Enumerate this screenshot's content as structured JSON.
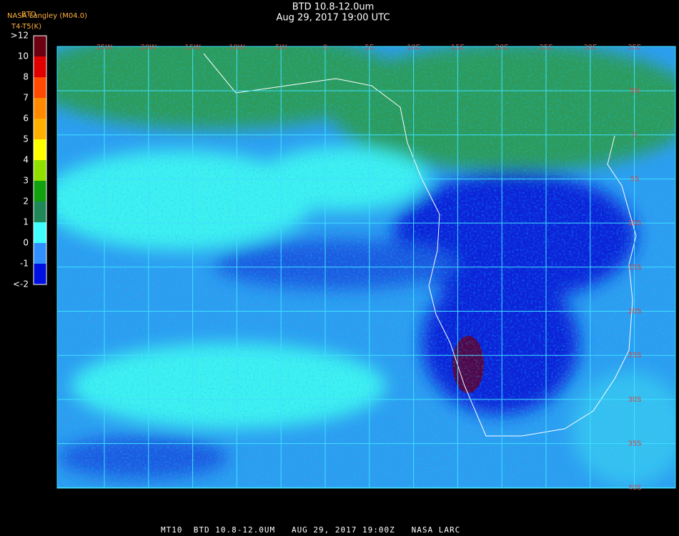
{
  "header": {
    "title": "BTD 10.8-12.0um",
    "subtitle": "Aug 29, 2017 19:00 UTC",
    "source": "NASA Langley (M04.0)",
    "product": "BTD",
    "units": "T4-T5(K)"
  },
  "colorbar": {
    "labels": [
      ">12",
      "10",
      "8",
      "7",
      "6",
      "5",
      "4",
      "3",
      "2",
      "1",
      "0",
      "-1",
      "<-2"
    ]
  },
  "map": {
    "lon_labels": [
      "25W",
      "20W",
      "15W",
      "10W",
      "5W",
      "0",
      "5E",
      "10E",
      "15E",
      "20E",
      "25E",
      "30E",
      "35E"
    ],
    "lat_labels": [
      "5N",
      "0",
      "5S",
      "10S",
      "15S",
      "20S",
      "25S",
      "30S",
      "35S",
      "40S"
    ]
  },
  "footer": {
    "text": "MT10  BTD 10.8-12.0UM   AUG 29, 2017 19:00Z   NASA LARC"
  }
}
